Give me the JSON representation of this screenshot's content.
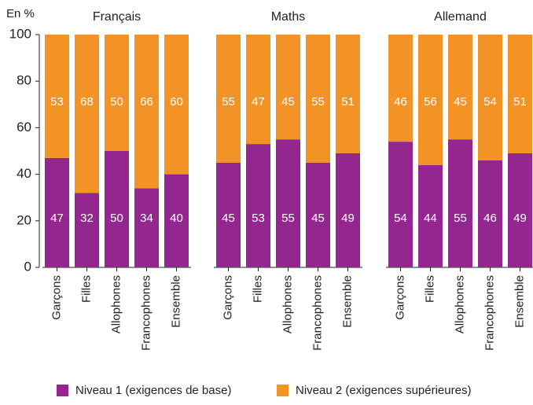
{
  "chart_data": {
    "type": "bar",
    "stacked": true,
    "y_label": "En %",
    "ylim": [
      0,
      100
    ],
    "yticks": [
      0,
      20,
      40,
      60,
      80,
      100
    ],
    "categories": [
      "Garçons",
      "Filles",
      "Allophones",
      "Francophones",
      "Ensemble"
    ],
    "series": [
      {
        "name": "Niveau 1 (exigences de base)",
        "color": "#93278f"
      },
      {
        "name": "Niveau 2 (exigences supérieures)",
        "color": "#f39325"
      }
    ],
    "panels": [
      {
        "title": "Français",
        "series": [
          {
            "values": [
              47,
              32,
              50,
              34,
              40
            ]
          },
          {
            "values": [
              53,
              68,
              50,
              66,
              60
            ]
          }
        ]
      },
      {
        "title": "Maths",
        "series": [
          {
            "values": [
              45,
              53,
              55,
              45,
              49
            ]
          },
          {
            "values": [
              55,
              47,
              45,
              55,
              51
            ]
          }
        ]
      },
      {
        "title": "Allemand",
        "series": [
          {
            "values": [
              54,
              44,
              55,
              46,
              49
            ]
          },
          {
            "values": [
              46,
              56,
              45,
              54,
              51
            ]
          }
        ]
      }
    ]
  }
}
